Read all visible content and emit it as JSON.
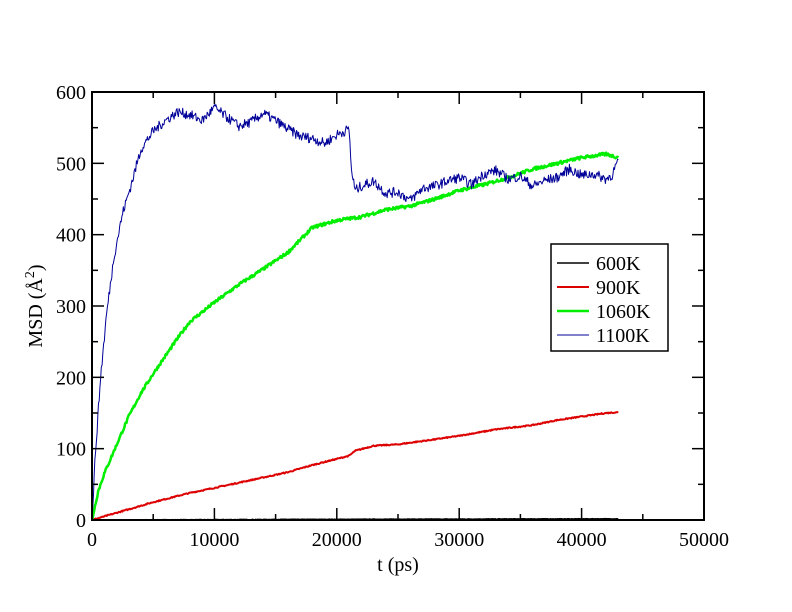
{
  "chart_data": {
    "type": "line",
    "title": "",
    "xlabel": "t (ps)",
    "ylabel_main": "MSD (",
    "ylabel_unit": "Å",
    "ylabel_sup": "2",
    "ylabel_close": ")",
    "xlim": [
      0,
      50000
    ],
    "ylim": [
      0,
      600
    ],
    "xticks": [
      0,
      10000,
      20000,
      30000,
      40000,
      50000
    ],
    "yticks": [
      0,
      100,
      200,
      300,
      400,
      500,
      600
    ],
    "xtick_labels": [
      "0",
      "10000",
      "20000",
      "30000",
      "40000",
      "50000"
    ],
    "ytick_labels": [
      "0",
      "100",
      "200",
      "300",
      "400",
      "500",
      "600"
    ],
    "grid": false,
    "legend_position": "right",
    "series": [
      {
        "name": "600K",
        "color": "#000000",
        "x": [
          0,
          5000,
          10000,
          15000,
          20000,
          25000,
          30000,
          35000,
          40000,
          43000
        ],
        "y": [
          0,
          0.3,
          0.5,
          0.8,
          1.0,
          1.2,
          1.3,
          1.5,
          1.6,
          1.7
        ]
      },
      {
        "name": "900K",
        "color": "#dd0000",
        "x": [
          0,
          2000,
          5000,
          8000,
          10000,
          13000,
          16000,
          18000,
          21000,
          21500,
          23000,
          25000,
          28000,
          30000,
          33000,
          36000,
          38000,
          40000,
          42000,
          43000
        ],
        "y": [
          0,
          10,
          25,
          38,
          45,
          56,
          67,
          77,
          90,
          97,
          104,
          106,
          113,
          118,
          127,
          133,
          140,
          145,
          150,
          151
        ]
      },
      {
        "name": "1060K",
        "color": "#00ee00",
        "x": [
          0,
          500,
          1000,
          2000,
          3000,
          4000,
          5000,
          6000,
          7000,
          8000,
          10000,
          12000,
          14000,
          16000,
          18000,
          20000,
          22000,
          24000,
          26000,
          28000,
          30000,
          32000,
          34000,
          36000,
          38000,
          40000,
          42000,
          43000
        ],
        "y": [
          0,
          40,
          65,
          105,
          145,
          178,
          205,
          230,
          255,
          278,
          305,
          330,
          352,
          375,
          410,
          420,
          425,
          435,
          440,
          450,
          462,
          470,
          480,
          492,
          500,
          508,
          513,
          508
        ]
      },
      {
        "name": "1100K",
        "color": "#000099",
        "x": [
          0,
          300,
          700,
          1200,
          1800,
          2500,
          3200,
          4000,
          5000,
          6000,
          7000,
          8000,
          9000,
          10000,
          11000,
          12000,
          13000,
          14000,
          15000,
          16000,
          17000,
          18000,
          19000,
          20000,
          21000,
          21200,
          21500,
          22000,
          23000,
          24000,
          25000,
          26000,
          27000,
          28000,
          29000,
          30000,
          31000,
          32000,
          33000,
          34000,
          35000,
          36000,
          37000,
          38000,
          39000,
          40000,
          41000,
          42000,
          42500,
          43000
        ],
        "y": [
          0,
          100,
          200,
          290,
          370,
          430,
          470,
          520,
          545,
          560,
          572,
          568,
          560,
          578,
          565,
          552,
          558,
          570,
          560,
          548,
          538,
          535,
          528,
          540,
          548,
          490,
          462,
          468,
          475,
          458,
          460,
          448,
          465,
          468,
          475,
          480,
          470,
          485,
          490,
          478,
          482,
          468,
          476,
          480,
          492,
          483,
          485,
          478,
          484,
          505
        ]
      }
    ]
  }
}
